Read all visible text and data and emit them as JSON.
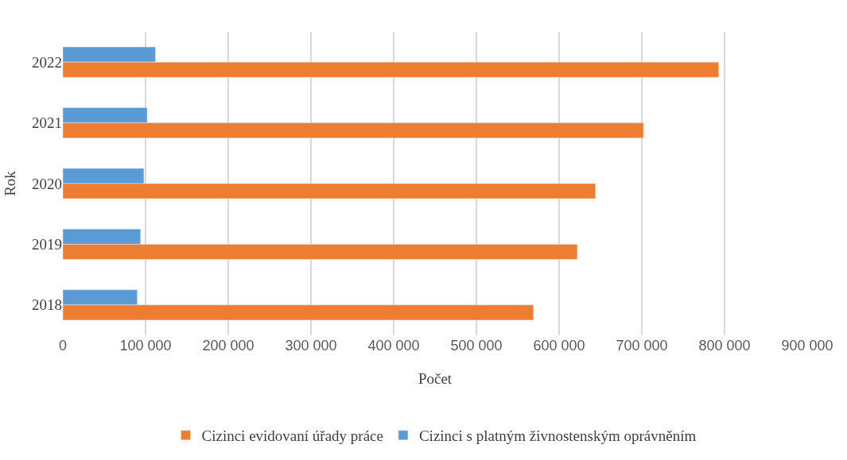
{
  "chart_data": {
    "type": "bar",
    "orientation": "horizontal",
    "xlabel": "Počet",
    "ylabel": "Rok",
    "categories": [
      "2022",
      "2021",
      "2020",
      "2019",
      "2018"
    ],
    "series": [
      {
        "name": "Cizinci evidovaní úřady práce",
        "color": "#ed7d31",
        "values": [
          793000,
          702000,
          644000,
          622000,
          569000
        ]
      },
      {
        "name": "Cizinci s platným živnostenským oprávněním",
        "color": "#5b9bd5",
        "values": [
          112000,
          102000,
          98000,
          94000,
          90000
        ]
      }
    ],
    "xlim": [
      0,
      900000
    ],
    "xticks": [
      0,
      {
        "value": 100000,
        "label": "100 000"
      },
      {
        "value": 200000,
        "label": "200 000"
      },
      {
        "value": 300000,
        "label": "300 000"
      },
      {
        "value": 400000,
        "label": "400 000"
      },
      {
        "value": 500000,
        "label": "500 000"
      },
      {
        "value": 600000,
        "label": "600 000"
      },
      {
        "value": 700000,
        "label": "700 000"
      },
      {
        "value": 800000,
        "label": "800 000"
      },
      {
        "value": 900000,
        "label": "900 000"
      }
    ],
    "grid": "x",
    "legend": "bottom"
  }
}
